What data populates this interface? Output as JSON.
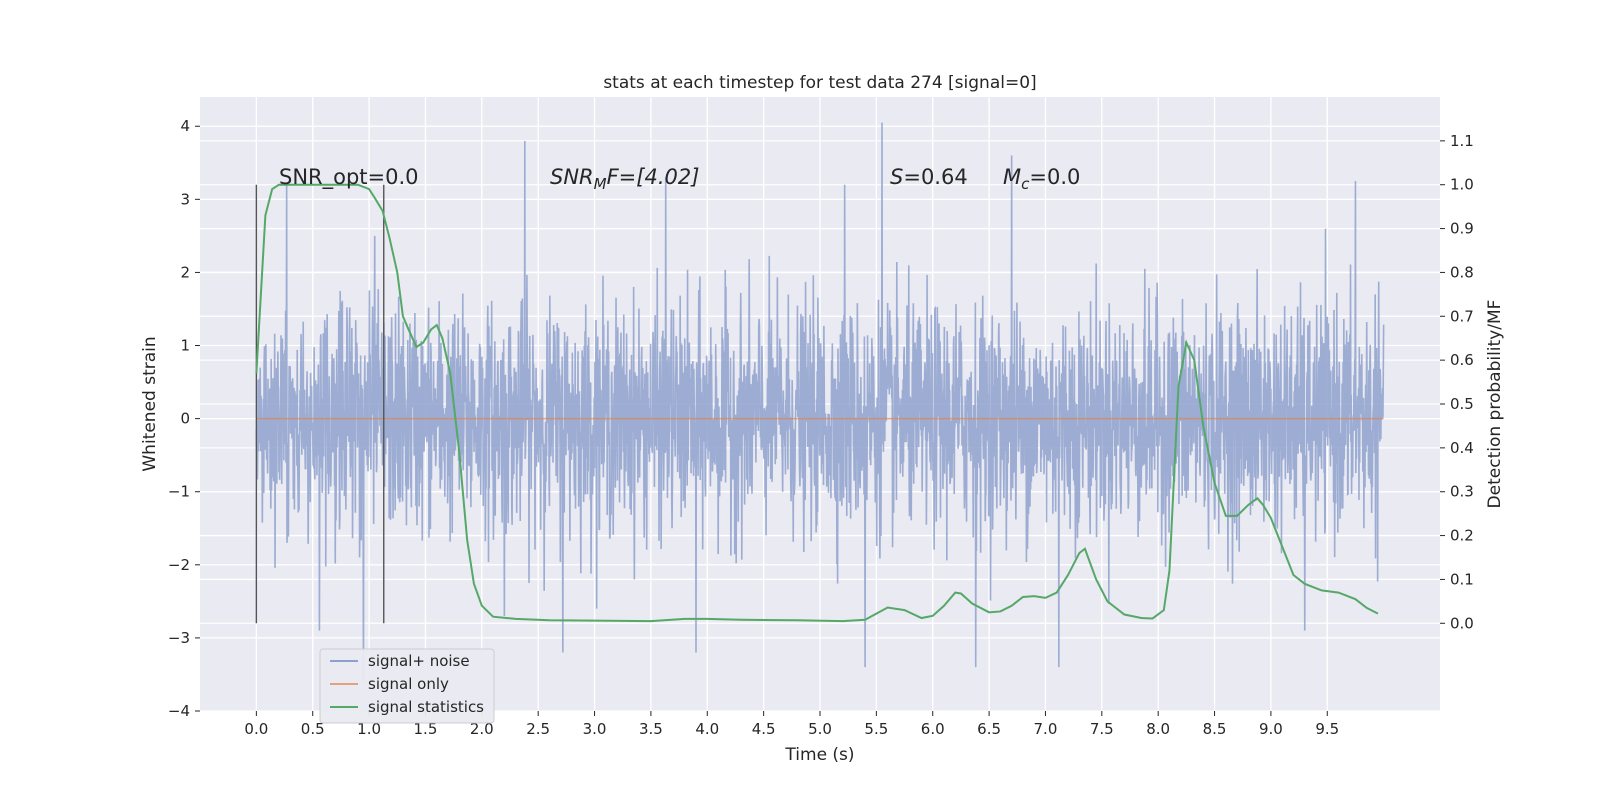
{
  "chart_data": {
    "type": "line",
    "title": "stats at each timestep for test data 274 [signal=0]",
    "xlabel": "Time (s)",
    "ylabel_left": "Whitened strain",
    "ylabel_right": "Detection probability/MF",
    "xlim": [
      -0.5,
      10.5
    ],
    "ylim_left": [
      -4,
      4.4
    ],
    "ylim_right": [
      -0.2,
      1.2
    ],
    "xticks": [
      0.0,
      0.5,
      1.0,
      1.5,
      2.0,
      2.5,
      3.0,
      3.5,
      4.0,
      4.5,
      5.0,
      5.5,
      6.0,
      6.5,
      7.0,
      7.5,
      8.0,
      8.5,
      9.0,
      9.5
    ],
    "xtick_labels": [
      "0.0",
      "0.5",
      "1.0",
      "1.5",
      "2.0",
      "2.5",
      "3.0",
      "3.5",
      "4.0",
      "4.5",
      "5.0",
      "5.5",
      "6.0",
      "6.5",
      "7.0",
      "7.5",
      "8.0",
      "8.5",
      "9.0",
      "9.5"
    ],
    "yticks_left": [
      -4,
      -3,
      -2,
      -1,
      0,
      1,
      2,
      3,
      4
    ],
    "ytick_labels_left": [
      "−4",
      "−3",
      "−2",
      "−1",
      "0",
      "1",
      "2",
      "3",
      "4"
    ],
    "yticks_right": [
      0.0,
      0.1,
      0.2,
      0.3,
      0.4,
      0.5,
      0.6,
      0.7,
      0.8,
      0.9,
      1.0,
      1.1
    ],
    "ytick_labels_right": [
      "0.0",
      "0.1",
      "0.2",
      "0.3",
      "0.4",
      "0.5",
      "0.6",
      "0.7",
      "0.8",
      "0.9",
      "1.0",
      "1.1"
    ],
    "grid": true,
    "legend_position": "lower-left",
    "annotations": {
      "snr_opt": "SNR_opt=0.0",
      "snr_mf_prefix": "SNR",
      "snr_mf_sub": "M",
      "snr_mf_suffix": "F=[4.02]",
      "s_symbol": "S",
      "s_value": "=0.64",
      "mc_symbol": "M",
      "mc_sub": "c",
      "mc_value": "=0.0"
    },
    "vertical_markers_x": [
      0.0,
      1.13
    ],
    "series": [
      {
        "name": "signal+ noise",
        "axis": "left",
        "color": "#8ea1cc",
        "x_range": [
          0.0,
          10.0
        ],
        "typical_envelope": [
          -1.6,
          1.4
        ],
        "peaks": [
          {
            "x": 0.27,
            "y": 3.2
          },
          {
            "x": 0.56,
            "y": -2.9
          },
          {
            "x": 0.95,
            "y": -3.6
          },
          {
            "x": 1.05,
            "y": 2.5
          },
          {
            "x": 2.2,
            "y": -2.7
          },
          {
            "x": 2.38,
            "y": 3.8
          },
          {
            "x": 2.72,
            "y": -3.2
          },
          {
            "x": 3.63,
            "y": 3.3
          },
          {
            "x": 3.9,
            "y": -3.2
          },
          {
            "x": 5.22,
            "y": 3.2
          },
          {
            "x": 5.4,
            "y": -3.4
          },
          {
            "x": 5.55,
            "y": 4.05
          },
          {
            "x": 6.38,
            "y": -3.4
          },
          {
            "x": 6.7,
            "y": 3.6
          },
          {
            "x": 7.12,
            "y": -3.4
          },
          {
            "x": 9.3,
            "y": -2.9
          },
          {
            "x": 9.75,
            "y": 3.25
          }
        ]
      },
      {
        "name": "signal only",
        "axis": "left",
        "color": "#dd8452",
        "x": [
          0.0,
          10.0
        ],
        "y": [
          0.0,
          0.0
        ]
      },
      {
        "name": "signal statistics",
        "axis": "right",
        "color": "#55a868",
        "x": [
          0.0,
          0.08,
          0.14,
          0.2,
          0.3,
          0.5,
          0.7,
          0.9,
          1.0,
          1.05,
          1.12,
          1.18,
          1.25,
          1.3,
          1.35,
          1.42,
          1.48,
          1.55,
          1.6,
          1.65,
          1.72,
          1.8,
          1.87,
          1.93,
          2.0,
          2.1,
          2.3,
          2.6,
          3.0,
          3.5,
          3.8,
          4.0,
          4.3,
          4.8,
          5.2,
          5.4,
          5.6,
          5.75,
          5.9,
          6.0,
          6.1,
          6.2,
          6.25,
          6.35,
          6.5,
          6.6,
          6.7,
          6.8,
          6.9,
          7.0,
          7.1,
          7.2,
          7.3,
          7.35,
          7.45,
          7.55,
          7.7,
          7.85,
          7.95,
          8.05,
          8.1,
          8.18,
          8.25,
          8.32,
          8.4,
          8.5,
          8.6,
          8.7,
          8.8,
          8.88,
          8.93,
          9.0,
          9.1,
          9.2,
          9.3,
          9.45,
          9.6,
          9.75,
          9.85,
          9.95
        ],
        "y": [
          0.57,
          0.93,
          0.99,
          1.0,
          1.0,
          1.0,
          1.0,
          1.0,
          0.99,
          0.97,
          0.94,
          0.88,
          0.8,
          0.7,
          0.67,
          0.63,
          0.64,
          0.67,
          0.68,
          0.65,
          0.57,
          0.39,
          0.19,
          0.09,
          0.04,
          0.015,
          0.01,
          0.007,
          0.006,
          0.005,
          0.01,
          0.01,
          0.008,
          0.007,
          0.005,
          0.008,
          0.036,
          0.03,
          0.012,
          0.017,
          0.04,
          0.07,
          0.068,
          0.045,
          0.025,
          0.027,
          0.04,
          0.06,
          0.062,
          0.058,
          0.07,
          0.11,
          0.16,
          0.17,
          0.1,
          0.05,
          0.02,
          0.012,
          0.011,
          0.03,
          0.12,
          0.54,
          0.64,
          0.6,
          0.45,
          0.32,
          0.245,
          0.245,
          0.27,
          0.285,
          0.27,
          0.24,
          0.175,
          0.11,
          0.09,
          0.075,
          0.07,
          0.055,
          0.035,
          0.022
        ]
      }
    ]
  }
}
